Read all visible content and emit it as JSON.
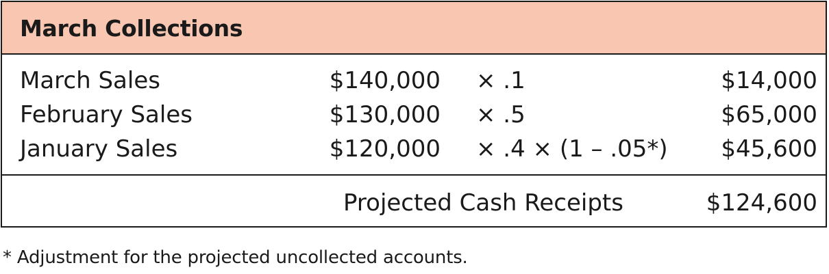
{
  "table": {
    "title": "March Collections",
    "header_color": "#f9c6b2",
    "rows": [
      {
        "label": "March Sales",
        "amount": "$140,000",
        "factor": "× .1",
        "result": "$14,000"
      },
      {
        "label": "February Sales",
        "amount": "$130,000",
        "factor": "× .5",
        "result": "$65,000"
      },
      {
        "label": "January Sales",
        "amount": "$120,000",
        "factor": "× .4 × (1 – .05*)",
        "result": "$45,600"
      }
    ],
    "total": {
      "label": "Projected Cash Receipts",
      "value": "$124,600"
    }
  },
  "footnote": "* Adjustment for the projected uncollected accounts."
}
